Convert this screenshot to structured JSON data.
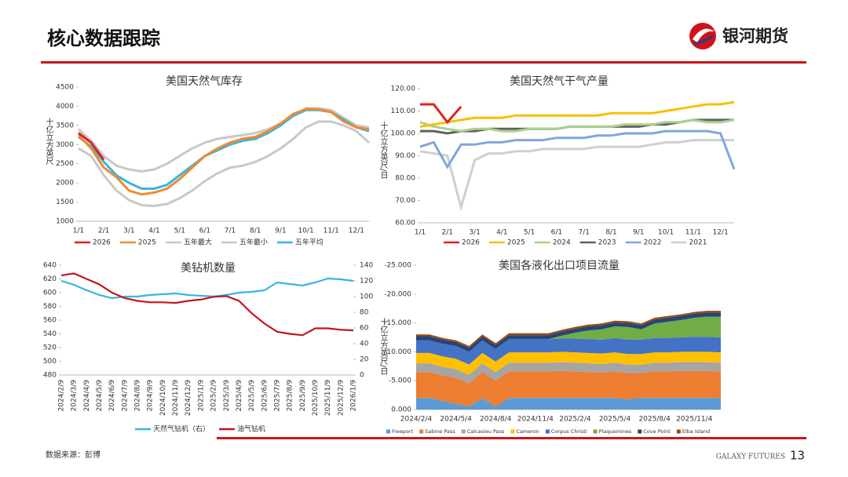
{
  "header": {
    "title": "核心数据跟踪",
    "brand": "银河期货"
  },
  "footer": {
    "source": "数据来源：彭博",
    "brand_en": "GALAXY FUTURES",
    "page": 13
  },
  "chart_data": [
    {
      "type": "line",
      "title": "美国天然气库存",
      "y_label": "十亿立方英尺",
      "categories": [
        "1/1",
        null,
        "2/1",
        null,
        "3/1",
        null,
        "4/1",
        null,
        "5/1",
        null,
        "6/1",
        null,
        "7/1",
        null,
        "8/1",
        null,
        "9/1",
        null,
        "10/1",
        null,
        "11/1",
        null,
        "12/1",
        null
      ],
      "ylim": [
        1000,
        4500
      ],
      "yticks": [
        1000,
        1500,
        2000,
        2500,
        3000,
        3500,
        4000,
        4500
      ],
      "series": [
        {
          "name": "五年最大",
          "color": "#c8c8c8",
          "values": [
            3400,
            3100,
            2700,
            2450,
            2350,
            2300,
            2350,
            2500,
            2700,
            2900,
            3050,
            3150,
            3200,
            3250,
            3300,
            3400,
            3550,
            3750,
            3950,
            3950,
            3900,
            3700,
            3500,
            3450
          ]
        },
        {
          "name": "五年最小",
          "color": "#c8c8c8",
          "values": [
            2900,
            2700,
            2200,
            1800,
            1550,
            1420,
            1400,
            1450,
            1600,
            1800,
            2050,
            2250,
            2400,
            2450,
            2550,
            2700,
            2900,
            3150,
            3450,
            3600,
            3600,
            3500,
            3350,
            3050
          ]
        },
        {
          "name": "五年平均",
          "color": "#35b6e0",
          "values": [
            3200,
            2950,
            2550,
            2200,
            2000,
            1850,
            1850,
            1950,
            2200,
            2450,
            2700,
            2850,
            3000,
            3100,
            3150,
            3300,
            3500,
            3750,
            3900,
            3900,
            3850,
            3650,
            3450,
            3350
          ]
        },
        {
          "name": "2025",
          "color": "#f08a30",
          "values": [
            3250,
            2900,
            2400,
            2150,
            1800,
            1700,
            1750,
            1850,
            2100,
            2400,
            2700,
            2900,
            3050,
            3150,
            3200,
            3350,
            3550,
            3800,
            3920,
            3920,
            3850,
            3600,
            3450,
            3400
          ]
        },
        {
          "name": "2026",
          "color": "#e0201d",
          "values": [
            3300,
            3050,
            2600,
            null,
            null,
            null,
            null,
            null,
            null,
            null,
            null,
            null,
            null,
            null,
            null,
            null,
            null,
            null,
            null,
            null,
            null,
            null,
            null,
            null
          ]
        }
      ],
      "legend_order": [
        4,
        3,
        0,
        1,
        2
      ]
    },
    {
      "type": "line",
      "title": "美国天然气干气产量",
      "y_label": "十亿立方英尺/日",
      "categories": [
        "1/1",
        null,
        "2/1",
        null,
        "3/1",
        null,
        "4/1",
        null,
        "5/1",
        null,
        "6/1",
        null,
        "7/1",
        null,
        "8/1",
        null,
        "9/1",
        null,
        "10/1",
        null,
        "11/1",
        null,
        "12/1",
        null
      ],
      "ylim": [
        60,
        120
      ],
      "yticks": [
        {
          "value": 60,
          "label": "60.00"
        },
        {
          "value": 70,
          "label": "70.00"
        },
        {
          "value": 80,
          "label": "80.00"
        },
        {
          "value": 90,
          "label": "90.00"
        },
        {
          "value": 100,
          "label": "100.00"
        },
        {
          "value": 110,
          "label": "110.00"
        },
        {
          "value": 120,
          "label": "120.00"
        }
      ],
      "series": [
        {
          "name": "2021",
          "color": "#cfcfcf",
          "values": [
            92,
            91,
            90,
            67,
            88,
            91,
            91,
            92,
            92,
            93,
            93,
            93,
            93,
            94,
            94,
            94,
            94,
            95,
            96,
            96,
            97,
            97,
            97,
            97
          ]
        },
        {
          "name": "2022",
          "color": "#7fa6dc",
          "values": [
            94,
            96,
            85,
            95,
            95,
            96,
            96,
            97,
            97,
            97,
            98,
            98,
            98,
            99,
            99,
            100,
            100,
            100,
            101,
            101,
            101,
            101,
            100,
            84
          ]
        },
        {
          "name": "2023",
          "color": "#606060",
          "values": [
            101,
            101,
            100,
            101,
            101,
            102,
            102,
            102,
            102,
            102,
            102,
            103,
            103,
            103,
            103,
            103,
            103,
            104,
            104,
            105,
            106,
            106,
            106,
            106
          ]
        },
        {
          "name": "2024",
          "color": "#a9d18e",
          "values": [
            105,
            103,
            102,
            101,
            102,
            102,
            101,
            101,
            102,
            102,
            102,
            103,
            103,
            103,
            103,
            104,
            104,
            104,
            105,
            105,
            106,
            105,
            105,
            106
          ]
        },
        {
          "name": "2025",
          "color": "#f5c000",
          "values": [
            103,
            104,
            105,
            106,
            107,
            107,
            107,
            108,
            108,
            108,
            108,
            108,
            108,
            108,
            109,
            109,
            109,
            109,
            110,
            111,
            112,
            113,
            113,
            114
          ]
        },
        {
          "name": "2026",
          "color": "#e0201d",
          "values": [
            113,
            113,
            105,
            112,
            null,
            null,
            null,
            null,
            null,
            null,
            null,
            null,
            null,
            null,
            null,
            null,
            null,
            null,
            null,
            null,
            null,
            null,
            null,
            null
          ]
        }
      ],
      "legend_order": [
        5,
        4,
        3,
        2,
        1,
        0
      ]
    },
    {
      "type": "line",
      "title": "美钻机数量",
      "categories": [
        "2024/2/9",
        "2024/3/9",
        "2024/4/9",
        "2024/5/9",
        "2024/6/9",
        "2024/7/9",
        "2024/8/9",
        "2024/9/9",
        "2024/10/9",
        "2024/11/9",
        "2024/12/9",
        "2025/1/9",
        "2025/2/9",
        "2025/3/9",
        "2025/4/9",
        "2025/5/9",
        "2025/6/9",
        "2025/7/9",
        "2025/8/9",
        "2025/9/9",
        "2025/10/9",
        "2025/11/9",
        "2025/12/9",
        "2026/1/9"
      ],
      "ylim": [
        480,
        640
      ],
      "yticks": [
        480,
        500,
        520,
        540,
        560,
        580,
        600,
        620,
        640
      ],
      "y2lim": [
        0,
        140
      ],
      "y2ticks": [
        0,
        20,
        40,
        60,
        80,
        100,
        120,
        140
      ],
      "series": [
        {
          "name": "天然气钻机（右）",
          "color": "#35b6e0",
          "axis": "y2",
          "values": [
            120,
            115,
            108,
            102,
            98,
            100,
            100,
            102,
            103,
            104,
            102,
            101,
            100,
            102,
            105,
            106,
            108,
            118,
            116,
            114,
            118,
            123,
            122,
            120
          ]
        },
        {
          "name": "油气钻机",
          "color": "#c0161b",
          "values": [
            625,
            628,
            620,
            612,
            600,
            592,
            588,
            586,
            586,
            585,
            588,
            590,
            594,
            595,
            588,
            570,
            555,
            543,
            540,
            538,
            548,
            548,
            546,
            545
          ]
        }
      ],
      "legend_order": [
        0,
        1
      ]
    },
    {
      "type": "area",
      "title": "美国各液化出口项目流量",
      "y_label": "十亿立方英尺/日",
      "categories": [
        "2024/2/4",
        null,
        null,
        "2024/5/4",
        null,
        null,
        "2024/8/4",
        null,
        null,
        "2024/11/4",
        null,
        null,
        "2025/2/4",
        null,
        null,
        "2025/5/4",
        null,
        null,
        "2025/8/4",
        null,
        null,
        "2025/11/4",
        null,
        null
      ],
      "ylim": [
        0,
        -25
      ],
      "yticks": [
        {
          "value": 0,
          "label": "0.000"
        },
        {
          "value": -5,
          "label": "-5.000"
        },
        {
          "value": -10,
          "label": "-10.000"
        },
        {
          "value": -15,
          "label": "-15.000"
        },
        {
          "value": -20,
          "label": "-20.000"
        },
        {
          "value": -25,
          "label": "-25.000"
        }
      ],
      "series": [
        {
          "name": "Freeport",
          "color": "#5b9bd5",
          "values": [
            -2,
            -2,
            -1.5,
            -1,
            -0.5,
            -2,
            -0.5,
            -2,
            -2,
            -2,
            -2,
            -2,
            -2,
            -2,
            -2,
            -2,
            -1.8,
            -2,
            -2,
            -2,
            -2,
            -2,
            -2,
            -2
          ]
        },
        {
          "name": "Sabine Pass",
          "color": "#ed7d31",
          "values": [
            -4.5,
            -4.5,
            -4.4,
            -4.5,
            -4,
            -4.5,
            -4.5,
            -4.6,
            -4.6,
            -4.6,
            -4.6,
            -4.7,
            -4.6,
            -4.5,
            -4.4,
            -4.6,
            -4.5,
            -4.3,
            -4.6,
            -4.6,
            -4.7,
            -4.7,
            -4.7,
            -4.6
          ]
        },
        {
          "name": "Calcasieu Pass",
          "color": "#a5a5a5",
          "values": [
            -1.5,
            -1.5,
            -1.5,
            -1.5,
            -1.5,
            -1.5,
            -1.5,
            -1.5,
            -1.5,
            -1.5,
            -1.5,
            -1.5,
            -1.5,
            -1.5,
            -1.5,
            -1.5,
            -1.5,
            -1.5,
            -1.5,
            -1.5,
            -1.5,
            -1.5,
            -1.5,
            -1.5
          ]
        },
        {
          "name": "Cameron",
          "color": "#ffc000",
          "values": [
            -1.8,
            -1.8,
            -1.8,
            -1.8,
            -1.8,
            -1.8,
            -1.8,
            -1.8,
            -1.8,
            -1.8,
            -1.8,
            -1.8,
            -1.8,
            -1.8,
            -1.8,
            -1.8,
            -1.8,
            -1.8,
            -1.8,
            -1.8,
            -1.8,
            -1.8,
            -1.8,
            -1.8
          ]
        },
        {
          "name": "Corpus Christi",
          "color": "#4472c4",
          "values": [
            -2.2,
            -2.2,
            -2.2,
            -2.2,
            -2.2,
            -2.2,
            -2.2,
            -2.3,
            -2.3,
            -2.3,
            -2.3,
            -2.3,
            -2.4,
            -2.4,
            -2.4,
            -2.5,
            -2.5,
            -2.5,
            -2.5,
            -2.5,
            -2.5,
            -2.6,
            -2.6,
            -2.6
          ]
        },
        {
          "name": "Plaquemines",
          "color": "#70ad47",
          "values": [
            0,
            0,
            0,
            0,
            0,
            0,
            0,
            0,
            0,
            0,
            0,
            -0.5,
            -1,
            -1.5,
            -1.8,
            -2,
            -2.2,
            -1.8,
            -2.5,
            -2.8,
            -3,
            -3.3,
            -3.5,
            -3.6
          ]
        },
        {
          "name": "Cove Point",
          "color": "#264478",
          "values": [
            -0.7,
            -0.7,
            -0.7,
            -0.7,
            -0.7,
            -0.7,
            -0.7,
            -0.7,
            -0.7,
            -0.7,
            -0.7,
            -0.7,
            -0.7,
            -0.7,
            -0.7,
            -0.7,
            -0.7,
            -0.7,
            -0.7,
            -0.7,
            -0.7,
            -0.7,
            -0.7,
            -0.7
          ]
        },
        {
          "name": "Elba Island",
          "color": "#9e480e",
          "values": [
            -0.3,
            -0.3,
            -0.3,
            -0.3,
            -0.3,
            -0.3,
            -0.3,
            -0.3,
            -0.3,
            -0.3,
            -0.3,
            -0.3,
            -0.3,
            -0.3,
            -0.3,
            -0.3,
            -0.3,
            -0.3,
            -0.3,
            -0.3,
            -0.3,
            -0.3,
            -0.3,
            -0.3
          ]
        }
      ],
      "legend_order": [
        0,
        1,
        2,
        3,
        4,
        5,
        6,
        7
      ]
    }
  ]
}
